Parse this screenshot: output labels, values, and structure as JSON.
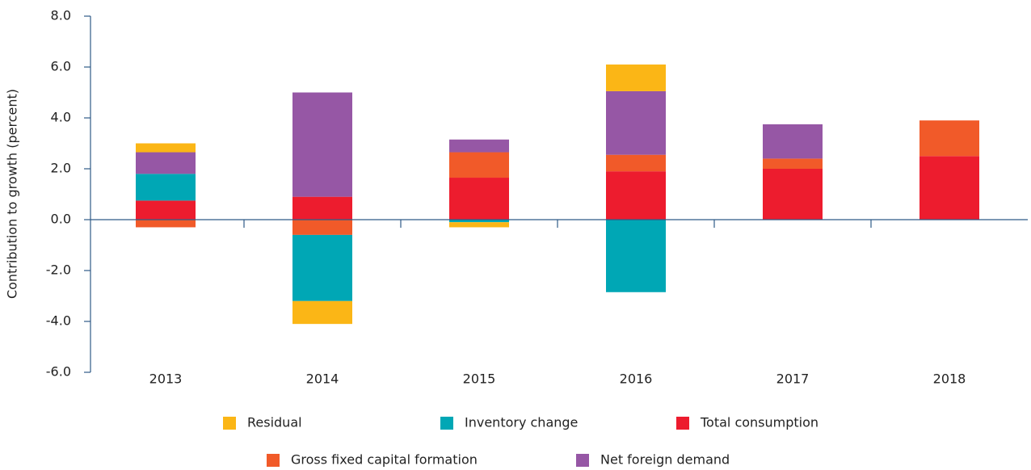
{
  "chart_data": {
    "type": "bar",
    "stacked": true,
    "ylabel": "Contribution to growth (percent)",
    "categories": [
      "2013",
      "2014",
      "2015",
      "2016",
      "2017",
      "2018"
    ],
    "series": [
      {
        "name": "Residual",
        "color": "#fbb616",
        "values": [
          0.35,
          -0.9,
          -0.2,
          1.05,
          0,
          0
        ]
      },
      {
        "name": "Inventory change",
        "color": "#00a7b5",
        "values": [
          1.05,
          -2.6,
          -0.1,
          -2.85,
          0,
          0
        ]
      },
      {
        "name": "Total consumption",
        "color": "#ed1c2e",
        "values": [
          0.75,
          0.9,
          1.65,
          1.9,
          2.0,
          2.5
        ]
      },
      {
        "name": "Gross fixed capital formation",
        "color": "#f15a29",
        "values": [
          -0.3,
          -0.6,
          1.0,
          0.65,
          0.4,
          1.4
        ]
      },
      {
        "name": "Net foreign demand",
        "color": "#9657a5",
        "values": [
          0.85,
          4.1,
          0.5,
          2.5,
          1.35,
          0
        ]
      }
    ],
    "ylim": [
      -6,
      8
    ],
    "yticks": [
      {
        "value": -6,
        "label": "-6.0"
      },
      {
        "value": -4,
        "label": "-4.0"
      },
      {
        "value": -2,
        "label": "-2.0"
      },
      {
        "value": 0,
        "label": "0.0"
      },
      {
        "value": 2,
        "label": "2.0"
      },
      {
        "value": 4,
        "label": "4.0"
      },
      {
        "value": 6,
        "label": "6.0"
      },
      {
        "value": 8,
        "label": "8.0"
      }
    ]
  }
}
